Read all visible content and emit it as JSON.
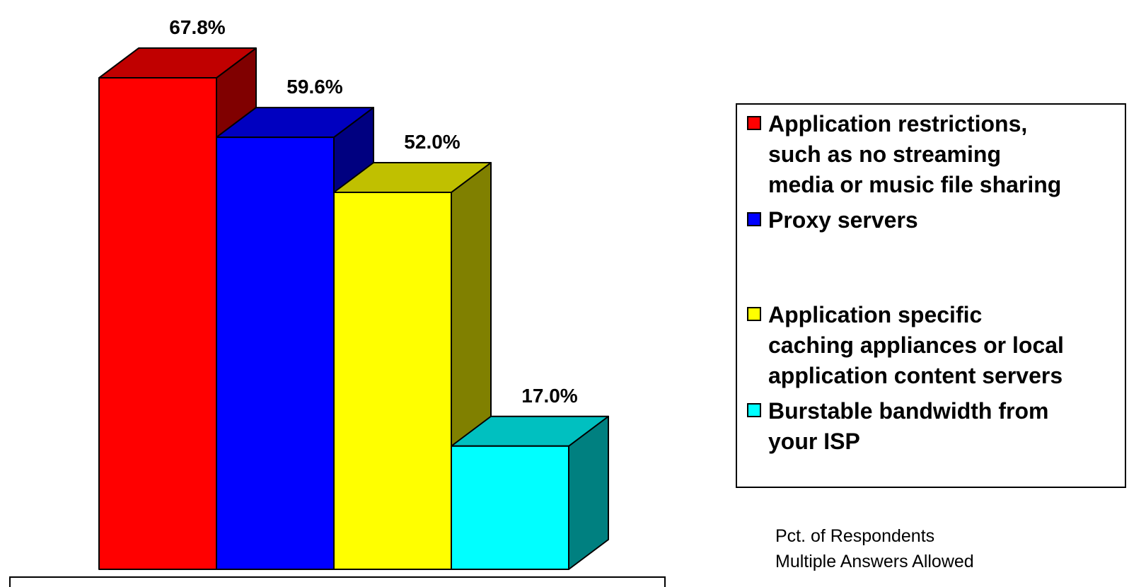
{
  "chart_data": {
    "type": "bar",
    "title": "",
    "xlabel": "",
    "ylabel": "",
    "ylim": [
      0,
      75
    ],
    "grid": false,
    "legend_position": "right",
    "series": [
      {
        "name": "Application restrictions,\nsuch as no streaming\nmedia or music file sharing",
        "value": 67.8,
        "label": "67.8%",
        "color": "#ff0000",
        "top_color": "#c00000",
        "side_color": "#800000"
      },
      {
        "name": "Proxy servers",
        "value": 59.6,
        "label": "59.6%",
        "color": "#0000ff",
        "top_color": "#0000c0",
        "side_color": "#000080"
      },
      {
        "name": "Application specific\ncaching appliances or local\napplication content servers",
        "value": 52.0,
        "label": "52.0%",
        "color": "#ffff00",
        "top_color": "#c0c000",
        "side_color": "#808000"
      },
      {
        "name": "Burstable bandwidth from\nyour ISP",
        "value": 17.0,
        "label": "17.0%",
        "color": "#00ffff",
        "top_color": "#00c0c0",
        "side_color": "#008080"
      }
    ]
  },
  "notes": {
    "line1": "Pct. of  Respondents",
    "line2": "Multiple Answers Allowed"
  }
}
